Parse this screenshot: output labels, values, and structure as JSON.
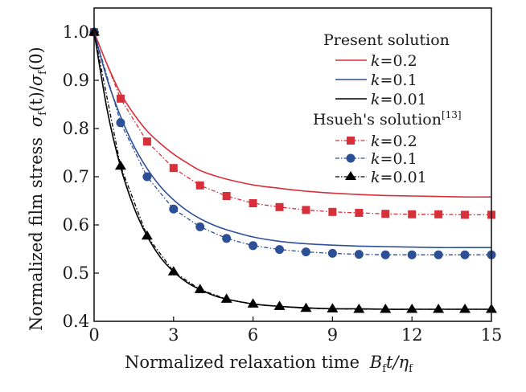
{
  "chart_data": {
    "type": "line",
    "title": "",
    "xlabel": "Normalized relaxation time",
    "xlabel_math": {
      "base": "B",
      "sub1": "f",
      "mid": "t/",
      "greek": "η",
      "sub2": "f"
    },
    "ylabel": "Normalized film stress",
    "ylabel_math": {
      "sigma": "σ",
      "sub": "f",
      "num_arg": "(t)",
      "slash": "/",
      "den_arg": "(0)"
    },
    "xlim": [
      0,
      15
    ],
    "ylim": [
      0.4,
      1.05
    ],
    "xticks": [
      0,
      3,
      6,
      9,
      12,
      15
    ],
    "xtick_labels": [
      "0",
      "3",
      "6",
      "9",
      "12",
      "15"
    ],
    "yticks": [
      0.4,
      0.5,
      0.6,
      0.7,
      0.8,
      0.9,
      1.0
    ],
    "ytick_labels": [
      "0.4",
      "0.5",
      "0.6",
      "0.7",
      "0.8",
      "0.9",
      "1.0"
    ],
    "grid": false,
    "legend_position": "top-right",
    "legend": {
      "group1_title": "Present solution",
      "group2_title": "Hsueh's solution",
      "group2_ref": "[13]",
      "k_symbol": "k"
    },
    "colors": {
      "red": "#d7303a",
      "blue": "#2c4f95",
      "black": "#000000"
    },
    "series": [
      {
        "name": "Present solution k=0.2",
        "k": "0.2",
        "style": "solid",
        "color": "red",
        "marker": "none",
        "x": [
          0,
          0.5,
          1,
          1.5,
          2,
          2.5,
          3,
          3.5,
          4,
          4.5,
          5,
          6,
          7,
          8,
          9,
          10,
          11,
          12,
          13,
          14,
          15
        ],
        "y": [
          1.0,
          0.932,
          0.873,
          0.83,
          0.795,
          0.769,
          0.747,
          0.729,
          0.713,
          0.703,
          0.695,
          0.683,
          0.676,
          0.67,
          0.666,
          0.663,
          0.661,
          0.66,
          0.659,
          0.658,
          0.658
        ]
      },
      {
        "name": "Present solution k=0.1",
        "k": "0.1",
        "style": "solid",
        "color": "blue",
        "marker": "none",
        "x": [
          0,
          0.5,
          1,
          1.5,
          2,
          2.5,
          3,
          3.5,
          4,
          4.5,
          5,
          6,
          7,
          8,
          9,
          10,
          11,
          12,
          13,
          14,
          15
        ],
        "y": [
          1.0,
          0.901,
          0.825,
          0.764,
          0.717,
          0.68,
          0.652,
          0.63,
          0.613,
          0.6,
          0.59,
          0.575,
          0.566,
          0.561,
          0.558,
          0.556,
          0.555,
          0.554,
          0.553,
          0.553,
          0.553
        ]
      },
      {
        "name": "Present solution k=0.01",
        "k": "0.01",
        "style": "solid",
        "color": "black",
        "marker": "none",
        "x": [
          0,
          0.5,
          1,
          1.5,
          2,
          2.5,
          3,
          3.5,
          4,
          4.5,
          5,
          6,
          7,
          8,
          9,
          10,
          11,
          12,
          13,
          14,
          15
        ],
        "y": [
          1.0,
          0.837,
          0.72,
          0.637,
          0.577,
          0.533,
          0.503,
          0.481,
          0.466,
          0.454,
          0.446,
          0.436,
          0.431,
          0.428,
          0.426,
          0.426,
          0.425,
          0.425,
          0.425,
          0.425,
          0.425
        ]
      },
      {
        "name": "Hsueh's solution k=0.2",
        "k": "0.2",
        "style": "dashdot",
        "color": "red",
        "marker": "square",
        "x": [
          0,
          1,
          2,
          3,
          4,
          5,
          6,
          7,
          8,
          9,
          10,
          11,
          12,
          13,
          14,
          15
        ],
        "y": [
          1.0,
          0.862,
          0.773,
          0.718,
          0.682,
          0.66,
          0.645,
          0.637,
          0.631,
          0.627,
          0.625,
          0.623,
          0.622,
          0.622,
          0.621,
          0.621
        ]
      },
      {
        "name": "Hsueh's solution k=0.1",
        "k": "0.1",
        "style": "dashdot",
        "color": "blue",
        "marker": "circle",
        "x": [
          0,
          1,
          2,
          3,
          4,
          5,
          6,
          7,
          8,
          9,
          10,
          11,
          12,
          13,
          14,
          15
        ],
        "y": [
          1.0,
          0.812,
          0.7,
          0.633,
          0.596,
          0.572,
          0.557,
          0.549,
          0.544,
          0.541,
          0.539,
          0.538,
          0.538,
          0.538,
          0.538,
          0.538
        ]
      },
      {
        "name": "Hsueh's solution k=0.01",
        "k": "0.01",
        "style": "dashdot",
        "color": "black",
        "marker": "triangle",
        "x": [
          0,
          1,
          2,
          3,
          4,
          5,
          6,
          7,
          8,
          9,
          10,
          11,
          12,
          13,
          14,
          15
        ],
        "y": [
          1.0,
          0.722,
          0.577,
          0.503,
          0.466,
          0.446,
          0.436,
          0.431,
          0.427,
          0.426,
          0.425,
          0.425,
          0.425,
          0.425,
          0.425,
          0.425
        ]
      }
    ]
  }
}
